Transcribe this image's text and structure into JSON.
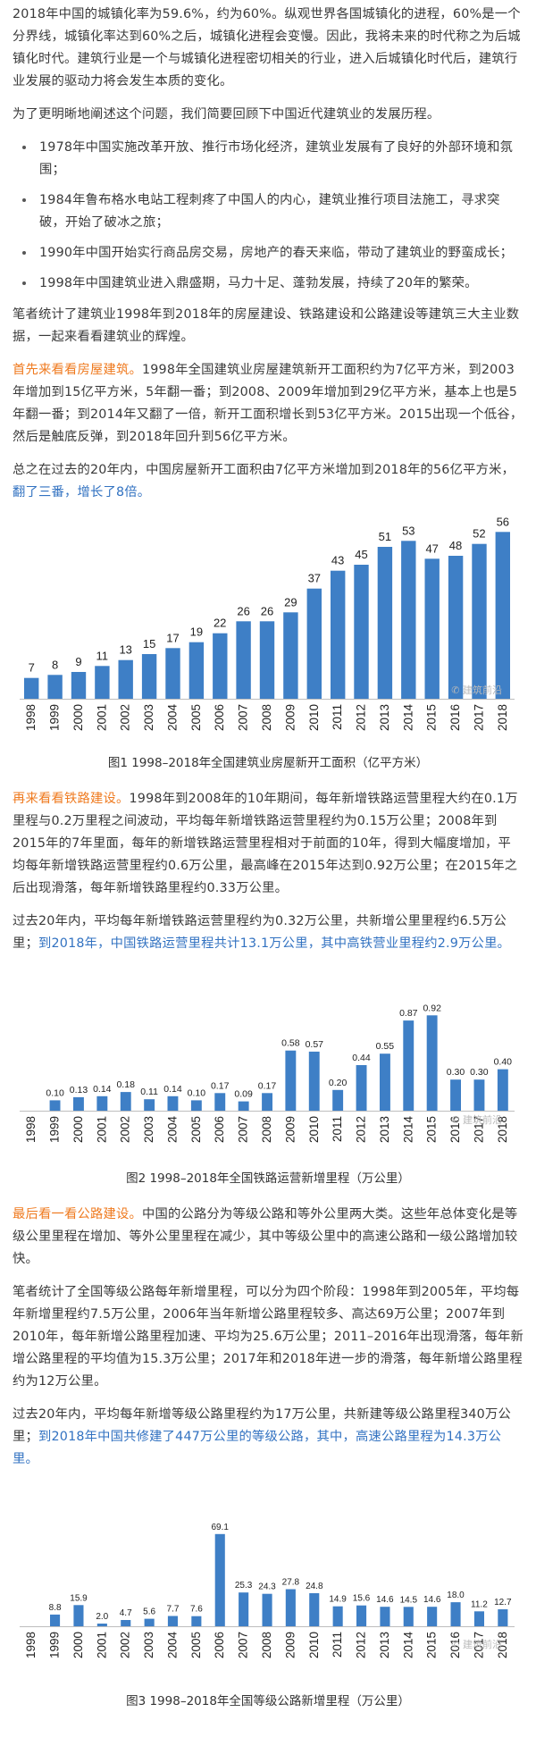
{
  "paragraphs": {
    "p1": "2018年中国的城镇化率为59.6%，约为60%。纵观世界各国城镇化的进程，60%是一个分界线，城镇化率达到60%之后，城镇化进程会变慢。因此，我将未来的时代称之为后城镇化时代。建筑行业是一个与城镇化进程密切相关的行业，进入后城镇化时代后，建筑行业发展的驱动力将会发生本质的变化。",
    "p2": "为了更明晰地阐述这个问题，我们简要回顾下中国近代建筑业的发展历程。",
    "bullets": [
      "1978年中国实施改革开放、推行市场化经济，建筑业发展有了良好的外部环境和氛围；",
      "1984年鲁布格水电站工程刺疼了中国人的内心，建筑业推行项目法施工，寻求突破，开始了破冰之旅；",
      "1990年中国开始实行商品房交易，房地产的春天来临，带动了建筑业的野蛮成长；",
      "1998年中国建筑业进入鼎盛期，马力十足、蓬勃发展，持续了20年的繁荣。"
    ],
    "p3": "笔者统计了建筑业1998年到2018年的房屋建设、铁路建设和公路建设等建筑三大主业数据，一起来看看建筑业的辉煌。",
    "p4_lead": "首先来看看房屋建筑。",
    "p4_rest": "1998年全国建筑业房屋建筑新开工面积约为7亿平方米，到2003年增加到15亿平方米，5年翻一番；到2008、2009年增加到29亿平方米，基本上也是5年翻一番；到2014年又翻了一倍，新开工面积增长到53亿平方米。2015出现一个低谷，然后是触底反弹，到2018年回升到56亿平方米。",
    "p5_rest": "总之在过去的20年内，中国房屋新开工面积由7亿平方米增加到2018年的56亿平方米，",
    "p5_highlight": "翻了三番，增长了8倍。",
    "p6_lead": "再来看看铁路建设。",
    "p6_rest": "1998年到2008年的10年期间，每年新增铁路运营里程大约在0.1万里程与0.2万里程之间波动，平均每年新增铁路运营里程约为0.15万公里；2008年到2015年的7年里面，每年的新增铁路运营里程相对于前面的10年，得到大幅度增加，平均每年新增铁路运营里程约0.6万公里，最高峰在2015年达到0.92万公里；在2015年之后出现滑落，每年新增铁路里程约0.33万公里。",
    "p7_rest": "过去20年内，平均每年新增铁路运营里程约为0.32万公里，共新增公里里程约6.5万公里；",
    "p7_highlight": "到2018年，中国铁路运营里程共计13.1万公里，其中高铁营业里程约2.9万公里。",
    "p8_lead": "最后看一看公路建设。",
    "p8_rest": "中国的公路分为等级公路和等外公里两大类。这些年总体变化是等级公里里程在增加、等外公里里程在减少，其中等级公里中的高速公路和一级公路增加较快。",
    "p9": "笔者统计了全国等级公路每年新增里程，可以分为四个阶段：1998年到2005年，平均每年新增里程约7.5万公里，2006年当年新增公路里程较多、高达69万公里；2007年到2010年，每年新增公路里程加速、平均为25.6万公里；2011–2016年出现滑落，每年新增公路里程的平均值为15.3万公里；2017年和2018年进一步的滑落，每年新增公路里程约为12万公里。",
    "p10_rest": "过去20年内，平均每年新增等级公路里程约为17万公里，共新建等级公路里程340万公里；",
    "p10_highlight": "到2018年中国共修建了447万公里的等级公路，其中，高速公路里程为14.3万公里。"
  },
  "captions": {
    "fig1": "图1 1998–2018年全国建筑业房屋新开工面积（亿平方米）",
    "fig2": "图2 1998–2018年全国铁路运营新增里程（万公里）",
    "fig3": "图3 1998–2018年全国等级公路新增里程（万公里）"
  },
  "watermark": "建筑前沿",
  "colors": {
    "bar": "#3e7fc6",
    "orange": "#ef7a1f",
    "blue": "#3272c1"
  },
  "chart_data": [
    {
      "type": "bar",
      "categories": [
        "1998",
        "1999",
        "2000",
        "2001",
        "2002",
        "2003",
        "2004",
        "2005",
        "2006",
        "2007",
        "2008",
        "2009",
        "2010",
        "2011",
        "2012",
        "2013",
        "2014",
        "2015",
        "2016",
        "2017",
        "2018"
      ],
      "values": [
        7,
        8,
        9,
        11,
        13,
        15,
        17,
        19,
        22,
        26,
        26,
        29,
        37,
        43,
        45,
        51,
        53,
        47,
        48,
        52,
        56
      ],
      "labels": [
        "7",
        "8",
        "9",
        "11",
        "13",
        "15",
        "17",
        "19",
        "22",
        "26",
        "26",
        "29",
        "37",
        "43",
        "45",
        "51",
        "53",
        "47",
        "48",
        "52",
        "56"
      ],
      "ylim": [
        0,
        60
      ],
      "grid": false
    },
    {
      "type": "bar",
      "categories": [
        "1998",
        "1999",
        "2000",
        "2001",
        "2002",
        "2003",
        "2004",
        "2005",
        "2006",
        "2007",
        "2008",
        "2009",
        "2010",
        "2011",
        "2012",
        "2013",
        "2014",
        "2015",
        "2016",
        "2017",
        "2018"
      ],
      "values": [
        null,
        0.1,
        0.13,
        0.14,
        0.18,
        0.11,
        0.14,
        0.1,
        0.17,
        0.09,
        0.17,
        0.58,
        0.57,
        0.2,
        0.44,
        0.55,
        0.87,
        0.92,
        0.3,
        0.3,
        0.4
      ],
      "labels": [
        "",
        "0.10",
        "0.13",
        "0.14",
        "0.18",
        "0.11",
        "0.14",
        "0.10",
        "0.17",
        "0.09",
        "0.17",
        "0.58",
        "0.57",
        "0.20",
        "0.44",
        "0.55",
        "0.87",
        "0.92",
        "0.30",
        "0.30",
        "0.40"
      ],
      "ylim": [
        0,
        1.0
      ],
      "grid": false
    },
    {
      "type": "bar",
      "categories": [
        "1998",
        "1999",
        "2000",
        "2001",
        "2002",
        "2003",
        "2004",
        "2005",
        "2006",
        "2007",
        "2008",
        "2009",
        "2010",
        "2011",
        "2012",
        "2013",
        "2014",
        "2015",
        "2016",
        "2017",
        "2018"
      ],
      "values": [
        null,
        8.8,
        15.9,
        2.0,
        4.7,
        5.6,
        7.7,
        7.6,
        69.1,
        25.3,
        24.3,
        27.8,
        24.8,
        14.9,
        15.6,
        14.6,
        14.5,
        14.6,
        18.0,
        11.2,
        12.7
      ],
      "labels": [
        "",
        "8.8",
        "15.9",
        "2.0",
        "4.7",
        "5.6",
        "7.7",
        "7.6",
        "69.1",
        "25.3",
        "24.3",
        "27.8",
        "24.8",
        "14.9",
        "15.6",
        "14.6",
        "14.5",
        "14.6",
        "18.0",
        "11.2",
        "12.7"
      ],
      "ylim": [
        0,
        75
      ],
      "grid": false
    }
  ]
}
